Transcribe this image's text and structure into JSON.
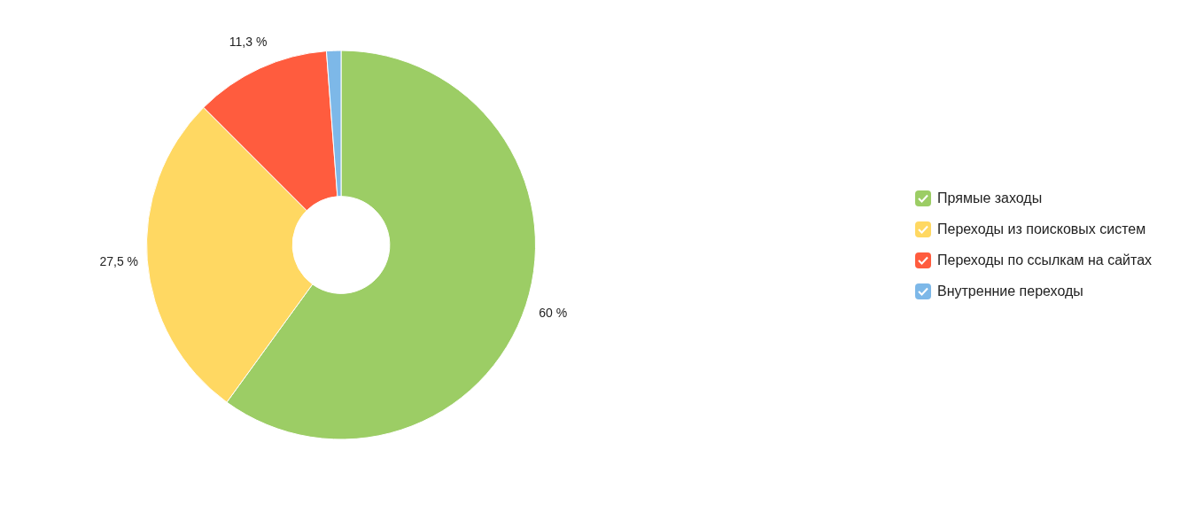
{
  "chart_data": {
    "type": "donut",
    "categories": [
      "Прямые заходы",
      "Переходы из поисковых систем",
      "Переходы по ссылкам на сайтах",
      "Внутренние переходы"
    ],
    "values": [
      60,
      27.5,
      11.3,
      1.2
    ],
    "colors": [
      "#9ccd65",
      "#ffd862",
      "#ff5c3e",
      "#7db8e8"
    ],
    "value_labels": [
      "60 %",
      "27,5 %",
      "11,3 %",
      null
    ],
    "legend": "right"
  }
}
